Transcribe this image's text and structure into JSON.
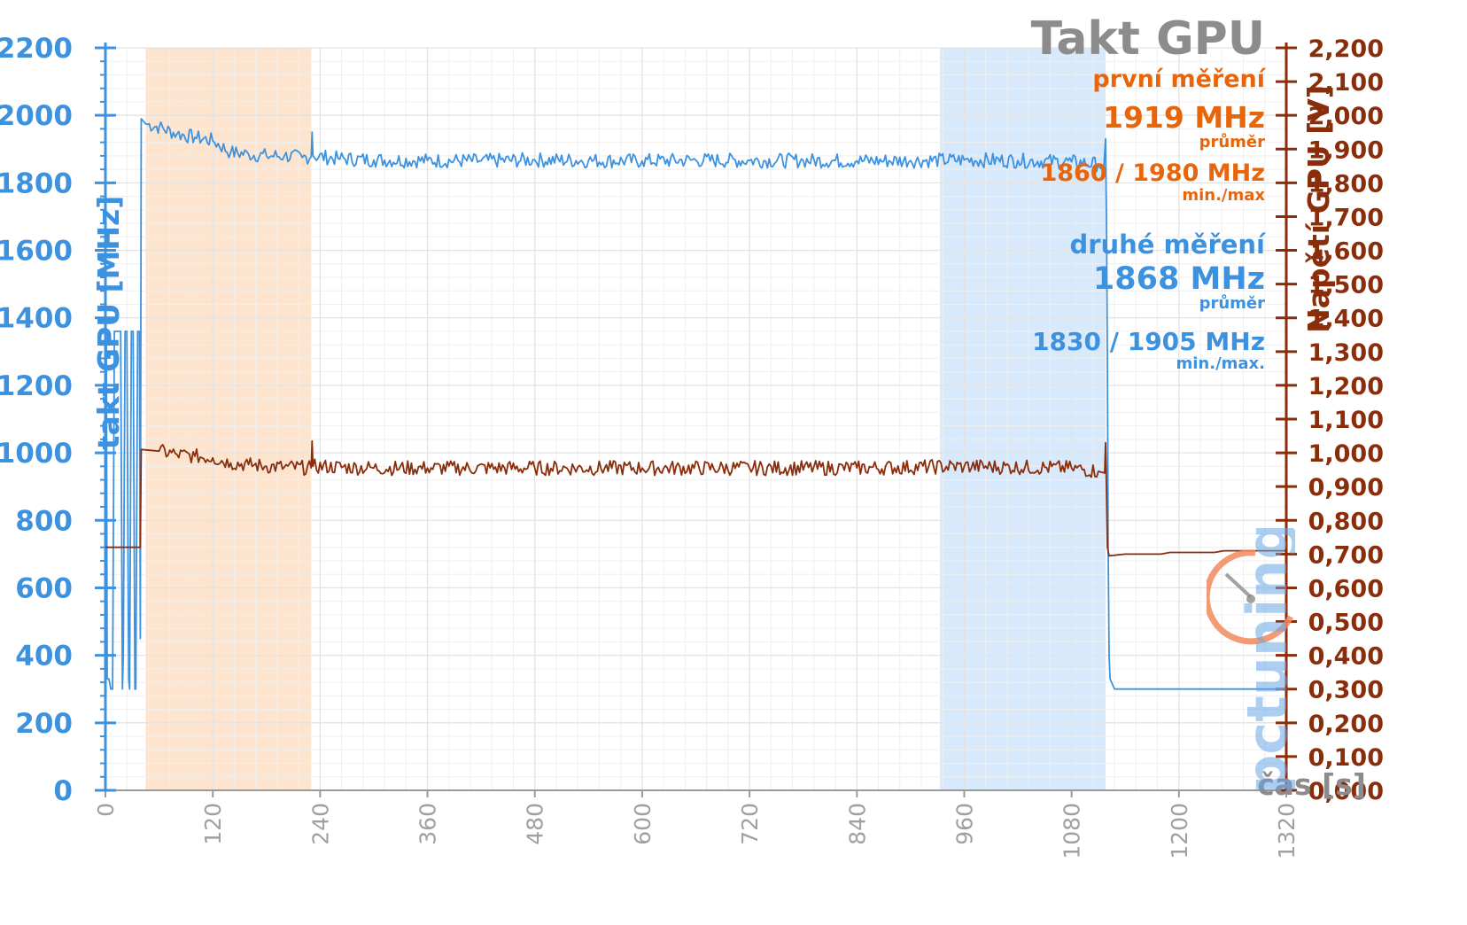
{
  "annotations": {
    "title": "Takt GPU",
    "first_label": "první měření",
    "first_avg": "1919 MHz",
    "first_avg_sub": "průměr",
    "first_minmax": "1860 / 1980 MHz",
    "first_minmax_sub": "min./max",
    "second_label": "druhé měření",
    "second_avg": "1868 MHz",
    "second_avg_sub": "průměr",
    "second_minmax": "1830 / 1905 MHz",
    "second_minmax_sub": "min./max."
  },
  "logo": {
    "text": "pctuning"
  },
  "colors": {
    "clock": "#3d92e0",
    "voltage": "#8a2d0b",
    "highlight_first": "#fce4cf",
    "highlight_second": "#d7e9fb",
    "grid": "#e3e3e3"
  },
  "chart_data": {
    "type": "line",
    "title": "Takt GPU",
    "xlabel": "čas [s]",
    "ylabel_left": "takt GPU [MHz]",
    "ylabel_right": "Napětí GPU [V]",
    "xlim": [
      0,
      1320
    ],
    "ylim_left": [
      0,
      2200
    ],
    "ylim_right": [
      0,
      2.2
    ],
    "x_ticks": [
      "0",
      "120",
      "240",
      "360",
      "480",
      "600",
      "720",
      "840",
      "960",
      "1080",
      "1200",
      "1320"
    ],
    "y_ticks_left": [
      "0",
      "200",
      "400",
      "600",
      "800",
      "1000",
      "1200",
      "1400",
      "1600",
      "1800",
      "2000",
      "2200"
    ],
    "y_ticks_right": [
      "0,000",
      "0,100",
      "0,200",
      "0,300",
      "0,400",
      "0,500",
      "0,600",
      "0,700",
      "0,800",
      "0,900",
      "1,000",
      "1,100",
      "1,200",
      "1,300",
      "1,400",
      "1,500",
      "1,600",
      "1,700",
      "1,800",
      "1,900",
      "2,000",
      "2,100",
      "2,200"
    ],
    "grid": true,
    "highlight_ranges": [
      {
        "name": "první měření",
        "x": [
          45,
          230
        ]
      },
      {
        "name": "druhé měření",
        "x": [
          933,
          1118
        ]
      }
    ],
    "series": [
      {
        "axis": "left",
        "points": [
          [
            0,
            1360
          ],
          [
            1,
            1360
          ],
          [
            2,
            330
          ],
          [
            4,
            330
          ],
          [
            6,
            300
          ],
          [
            8,
            300
          ],
          [
            10,
            1360
          ],
          [
            17,
            1360
          ],
          [
            19,
            300
          ],
          [
            20,
            400
          ],
          [
            22,
            1360
          ],
          [
            24,
            1360
          ],
          [
            26,
            330
          ],
          [
            27,
            300
          ],
          [
            29,
            1360
          ],
          [
            31,
            1360
          ],
          [
            33,
            300
          ],
          [
            34,
            300
          ],
          [
            36,
            1360
          ],
          [
            38,
            1360
          ],
          [
            39,
            450
          ],
          [
            40,
            1990
          ],
          [
            45,
            1975
          ],
          [
            60,
            1965
          ],
          [
            80,
            1945
          ],
          [
            100,
            1935
          ],
          [
            120,
            1925
          ],
          [
            140,
            1890
          ],
          [
            160,
            1885
          ],
          [
            180,
            1880
          ],
          [
            200,
            1880
          ],
          [
            220,
            1875
          ],
          [
            230,
            1878
          ],
          [
            231,
            1950
          ],
          [
            232,
            1880
          ],
          [
            260,
            1872
          ],
          [
            300,
            1868
          ],
          [
            360,
            1866
          ],
          [
            420,
            1865
          ],
          [
            480,
            1868
          ],
          [
            540,
            1866
          ],
          [
            600,
            1865
          ],
          [
            660,
            1867
          ],
          [
            720,
            1866
          ],
          [
            780,
            1866
          ],
          [
            840,
            1865
          ],
          [
            900,
            1866
          ],
          [
            960,
            1868
          ],
          [
            1020,
            1866
          ],
          [
            1080,
            1862
          ],
          [
            1110,
            1855
          ],
          [
            1116,
            1845
          ],
          [
            1118,
            1930
          ],
          [
            1119,
            1700
          ],
          [
            1120,
            1300
          ],
          [
            1121,
            700
          ],
          [
            1122,
            400
          ],
          [
            1123,
            330
          ],
          [
            1128,
            300
          ],
          [
            1200,
            300
          ],
          [
            1320,
            300
          ]
        ]
      },
      {
        "axis": "right",
        "points": [
          [
            0,
            0.72
          ],
          [
            39,
            0.72
          ],
          [
            40,
            1.01
          ],
          [
            60,
            1.005
          ],
          [
            80,
            0.995
          ],
          [
            100,
            0.99
          ],
          [
            120,
            0.985
          ],
          [
            140,
            0.97
          ],
          [
            160,
            0.965
          ],
          [
            180,
            0.96
          ],
          [
            200,
            0.958
          ],
          [
            230,
            0.955
          ],
          [
            231,
            1.035
          ],
          [
            232,
            0.96
          ],
          [
            300,
            0.955
          ],
          [
            360,
            0.955
          ],
          [
            480,
            0.955
          ],
          [
            600,
            0.955
          ],
          [
            720,
            0.955
          ],
          [
            840,
            0.955
          ],
          [
            960,
            0.96
          ],
          [
            1080,
            0.955
          ],
          [
            1110,
            0.945
          ],
          [
            1117,
            0.94
          ],
          [
            1118,
            1.03
          ],
          [
            1119,
            0.9
          ],
          [
            1120,
            0.72
          ],
          [
            1122,
            0.695
          ],
          [
            1140,
            0.7
          ],
          [
            1180,
            0.7
          ],
          [
            1190,
            0.705
          ],
          [
            1240,
            0.705
          ],
          [
            1250,
            0.71
          ],
          [
            1320,
            0.71
          ]
        ]
      }
    ]
  }
}
